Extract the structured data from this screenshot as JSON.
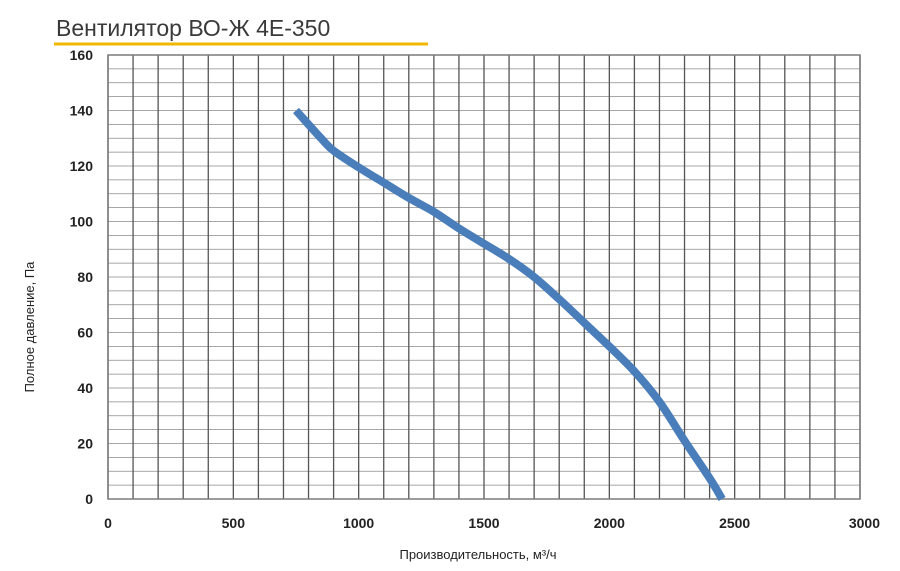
{
  "chart_data": {
    "type": "line",
    "title": "Вентилятор ВО-Ж 4Е-350",
    "xlabel": "Производительность, м³/ч",
    "ylabel": "Полное давление, Па",
    "xlim": [
      0,
      3000
    ],
    "ylim": [
      0,
      160
    ],
    "x_ticks": [
      0,
      500,
      1000,
      1500,
      2000,
      2500,
      3000
    ],
    "x_tick_labels": [
      "0",
      "500",
      "1000",
      "1500",
      "2000",
      "2500",
      "3000"
    ],
    "y_ticks": [
      0,
      20,
      40,
      60,
      80,
      100,
      120,
      140,
      160
    ],
    "y_tick_labels": [
      "0",
      "20",
      "40",
      "60",
      "80",
      "100",
      "120",
      "140",
      "160"
    ],
    "x_minor_step": 100,
    "y_minor_step": 5,
    "grid": true,
    "series": [
      {
        "color": "#4a7ebb",
        "x": [
          750,
          800,
          850,
          900,
          1000,
          1100,
          1200,
          1300,
          1400,
          1500,
          1600,
          1700,
          1800,
          1900,
          2000,
          2100,
          2200,
          2300,
          2400,
          2450
        ],
        "y": [
          140,
          135,
          130,
          125.5,
          119.5,
          114,
          108.5,
          103.5,
          97.5,
          92,
          86.5,
          80,
          72,
          63.5,
          55,
          46,
          35,
          21,
          7.5,
          0
        ]
      }
    ]
  },
  "colors": {
    "title_underline": "#f2b705",
    "grid": "#8a8a8a",
    "frame": "#7a7a7a"
  }
}
